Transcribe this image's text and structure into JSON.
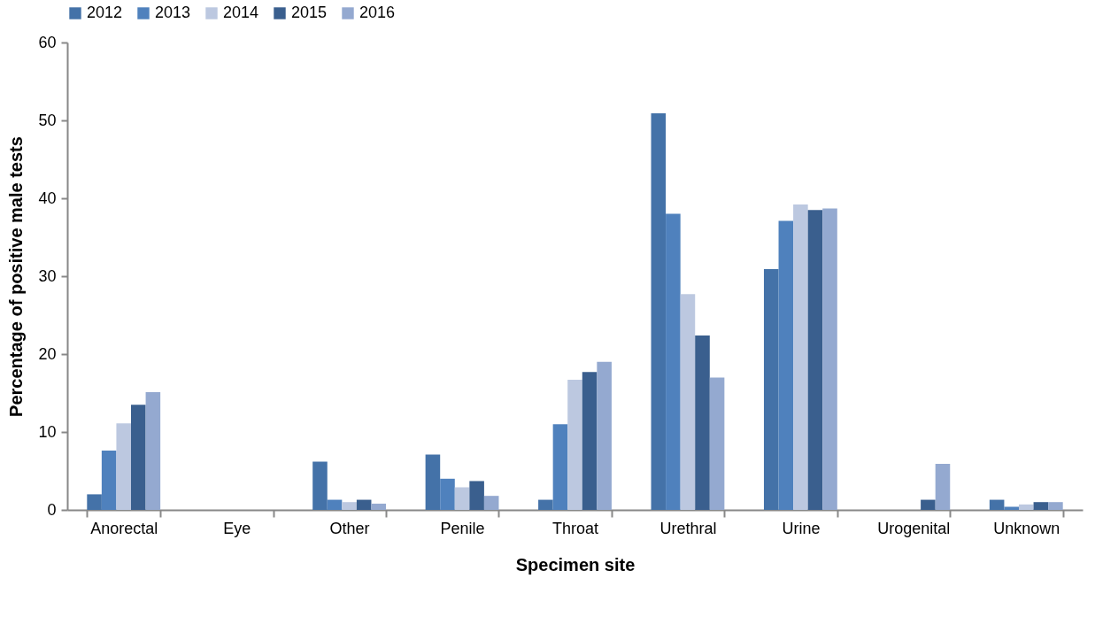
{
  "chart_data": {
    "type": "bar",
    "xlabel": "Specimen site",
    "ylabel": "Percentage of positive male tests",
    "categories": [
      "Anorectal",
      "Eye",
      "Other",
      "Penile",
      "Throat",
      "Urethral",
      "Urine",
      "Urogenital",
      "Unknown"
    ],
    "series": [
      {
        "name": "2012",
        "color": "#4472a8",
        "values": [
          2.0,
          0,
          6.2,
          7.1,
          1.3,
          50.9,
          30.9,
          0,
          1.3
        ]
      },
      {
        "name": "2013",
        "color": "#4f81bd",
        "values": [
          7.6,
          0,
          1.3,
          4.0,
          11.0,
          38.0,
          37.1,
          0,
          0.4
        ]
      },
      {
        "name": "2014",
        "color": "#bcc8e0",
        "values": [
          11.1,
          0,
          1.0,
          2.9,
          16.7,
          27.7,
          39.2,
          0,
          0.7
        ]
      },
      {
        "name": "2015",
        "color": "#3a5f8e",
        "values": [
          13.5,
          0,
          1.3,
          3.7,
          17.7,
          22.4,
          38.5,
          1.3,
          1.0
        ]
      },
      {
        "name": "2016",
        "color": "#94a9d0",
        "values": [
          15.1,
          0,
          0.8,
          1.8,
          19.0,
          17.0,
          38.7,
          5.9,
          1.0
        ]
      }
    ],
    "ylim": [
      0,
      60
    ],
    "yticks": [
      0,
      10,
      20,
      30,
      40,
      50,
      60
    ],
    "grid": false,
    "legend": "top"
  }
}
